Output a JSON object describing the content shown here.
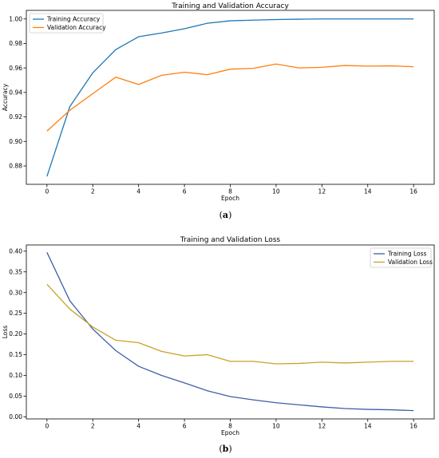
{
  "chart_data": [
    {
      "type": "line",
      "title": "Training and Validation Accuracy",
      "xlabel": "Epoch",
      "ylabel": "Accuracy",
      "xlim": [
        -0.9,
        16.9
      ],
      "ylim": [
        0.865,
        1.007
      ],
      "xticks": [
        0,
        2,
        4,
        6,
        8,
        10,
        12,
        14,
        16
      ],
      "yticks": [
        0.88,
        0.9,
        0.92,
        0.94,
        0.96,
        0.98,
        1.0
      ],
      "ytick_labels": [
        "0.88",
        "0.90",
        "0.92",
        "0.94",
        "0.96",
        "0.98",
        "1.00"
      ],
      "x": [
        0,
        1,
        2,
        3,
        4,
        5,
        6,
        7,
        8,
        9,
        10,
        11,
        12,
        13,
        14,
        15,
        16
      ],
      "series": [
        {
          "name": "Training Accuracy",
          "color": "#1f77b4",
          "values": [
            0.8715,
            0.9285,
            0.956,
            0.975,
            0.9855,
            0.9885,
            0.992,
            0.9965,
            0.9985,
            0.999,
            0.9995,
            0.9998,
            1.0,
            1.0,
            1.0,
            1.0,
            1.0
          ]
        },
        {
          "name": "Validation Accuracy",
          "color": "#ff7f0e",
          "values": [
            0.9085,
            0.9255,
            0.939,
            0.9525,
            0.9465,
            0.954,
            0.9565,
            0.9545,
            0.959,
            0.9597,
            0.9632,
            0.96,
            0.9605,
            0.962,
            0.9615,
            0.9617,
            0.961
          ]
        }
      ],
      "legend_position": "top-left",
      "caption": "(a)"
    },
    {
      "type": "line",
      "title": "Training and Validation Loss",
      "xlabel": "Epoch",
      "ylabel": "Loss",
      "xlim": [
        -0.9,
        16.9
      ],
      "ylim": [
        -0.005,
        0.415
      ],
      "xticks": [
        0,
        2,
        4,
        6,
        8,
        10,
        12,
        14,
        16
      ],
      "yticks": [
        0.0,
        0.05,
        0.1,
        0.15,
        0.2,
        0.25,
        0.3,
        0.35,
        0.4
      ],
      "ytick_labels": [
        "0.00",
        "0.05",
        "0.10",
        "0.15",
        "0.20",
        "0.25",
        "0.30",
        "0.35",
        "0.40"
      ],
      "x": [
        0,
        1,
        2,
        3,
        4,
        5,
        6,
        7,
        8,
        9,
        10,
        11,
        12,
        13,
        14,
        15,
        16
      ],
      "series": [
        {
          "name": "Training Loss",
          "color": "#3f5fa8",
          "values": [
            0.397,
            0.28,
            0.212,
            0.16,
            0.122,
            0.1,
            0.082,
            0.063,
            0.049,
            0.041,
            0.034,
            0.029,
            0.024,
            0.02,
            0.018,
            0.017,
            0.015
          ]
        },
        {
          "name": "Validation Loss",
          "color": "#c9a227",
          "values": [
            0.32,
            0.26,
            0.217,
            0.185,
            0.179,
            0.158,
            0.147,
            0.15,
            0.134,
            0.134,
            0.128,
            0.129,
            0.132,
            0.13,
            0.132,
            0.134,
            0.134
          ]
        }
      ],
      "legend_position": "top-right",
      "caption": "(b)"
    }
  ]
}
